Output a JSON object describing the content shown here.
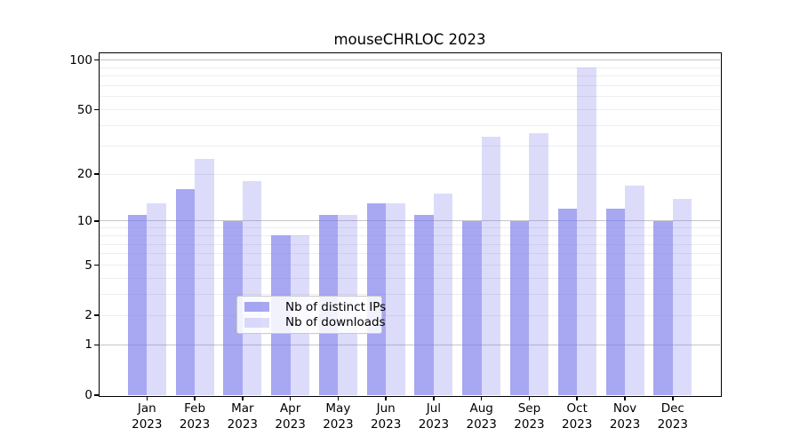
{
  "title": "mouseCHRLOC 2023",
  "chart_data": {
    "type": "bar",
    "title": "mouseCHRLOC 2023",
    "categories": [
      "Jan 2023",
      "Feb 2023",
      "Mar 2023",
      "Apr 2023",
      "May 2023",
      "Jun 2023",
      "Jul 2023",
      "Aug 2023",
      "Sep 2023",
      "Oct 2023",
      "Nov 2023",
      "Dec 2023"
    ],
    "series": [
      {
        "name": "Nb of distinct IPs",
        "color": "rgba(120,120,235,0.65)",
        "values": [
          11,
          16,
          10,
          8,
          11,
          13,
          11,
          10,
          10,
          12,
          12,
          10
        ]
      },
      {
        "name": "Nb of downloads",
        "color": "rgba(120,120,235,0.26)",
        "values": [
          13,
          25,
          18,
          8,
          11,
          13,
          15,
          34,
          36,
          90,
          17,
          14
        ]
      }
    ],
    "y_scale": "log1p",
    "ylim": [
      0,
      110
    ],
    "y_ticks": [
      0,
      1,
      2,
      5,
      10,
      20,
      50,
      100
    ],
    "y_major_gridlines": [
      1,
      10,
      100
    ],
    "y_minor_gridlines": [
      2,
      3,
      4,
      5,
      6,
      7,
      8,
      9,
      20,
      30,
      40,
      50,
      60,
      70,
      80,
      90
    ],
    "xlabel": "",
    "ylabel": "",
    "grid": "horizontal",
    "legend_position": "lower center",
    "colors": {
      "bar_distinct_ips": "rgba(120,120,235,0.65)",
      "bar_downloads": "rgba(120,120,235,0.26)",
      "grid_major": "#c5c5c5",
      "grid_minor": "#ededed",
      "spine": "#000000",
      "background": "#ffffff"
    }
  }
}
